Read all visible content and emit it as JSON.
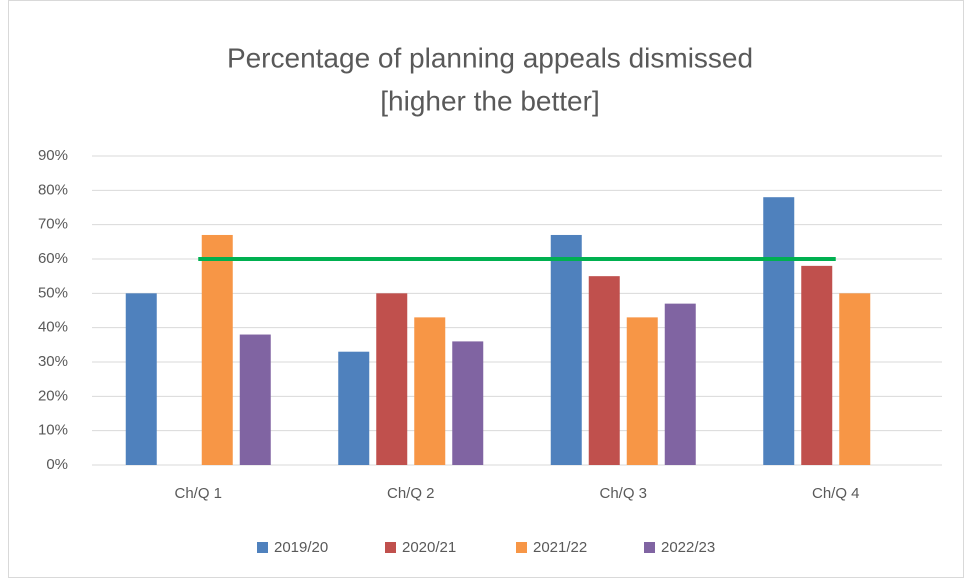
{
  "chart_data": {
    "type": "bar",
    "title": [
      "Percentage of planning appeals dismissed",
      "[higher the better]"
    ],
    "categories": [
      "Ch/Q 1",
      "Ch/Q 2",
      "Ch/Q 3",
      "Ch/Q 4"
    ],
    "series": [
      {
        "name": "2019/20",
        "color": "#4f81bd",
        "values": [
          50,
          33,
          67,
          78
        ]
      },
      {
        "name": "2020/21",
        "color": "#c0504d",
        "values": [
          null,
          50,
          55,
          58
        ]
      },
      {
        "name": "2021/22",
        "color": "#f79646",
        "values": [
          67,
          43,
          43,
          50
        ]
      },
      {
        "name": "2022/23",
        "color": "#8064a2",
        "values": [
          38,
          36,
          47,
          null
        ]
      }
    ],
    "target": 60,
    "target_color": "#00b050",
    "ylim": [
      0,
      90
    ],
    "yticks": [
      {
        "value": 0,
        "label": "0%"
      },
      {
        "value": 10,
        "label": "10%"
      },
      {
        "value": 20,
        "label": "20%"
      },
      {
        "value": 30,
        "label": "30%"
      },
      {
        "value": 40,
        "label": "40%"
      },
      {
        "value": 50,
        "label": "50%"
      },
      {
        "value": 60,
        "label": "60%"
      },
      {
        "value": 70,
        "label": "70%"
      },
      {
        "value": 80,
        "label": "80%"
      },
      {
        "value": 90,
        "label": "90%"
      }
    ],
    "grid": true,
    "legend": "bottom"
  }
}
